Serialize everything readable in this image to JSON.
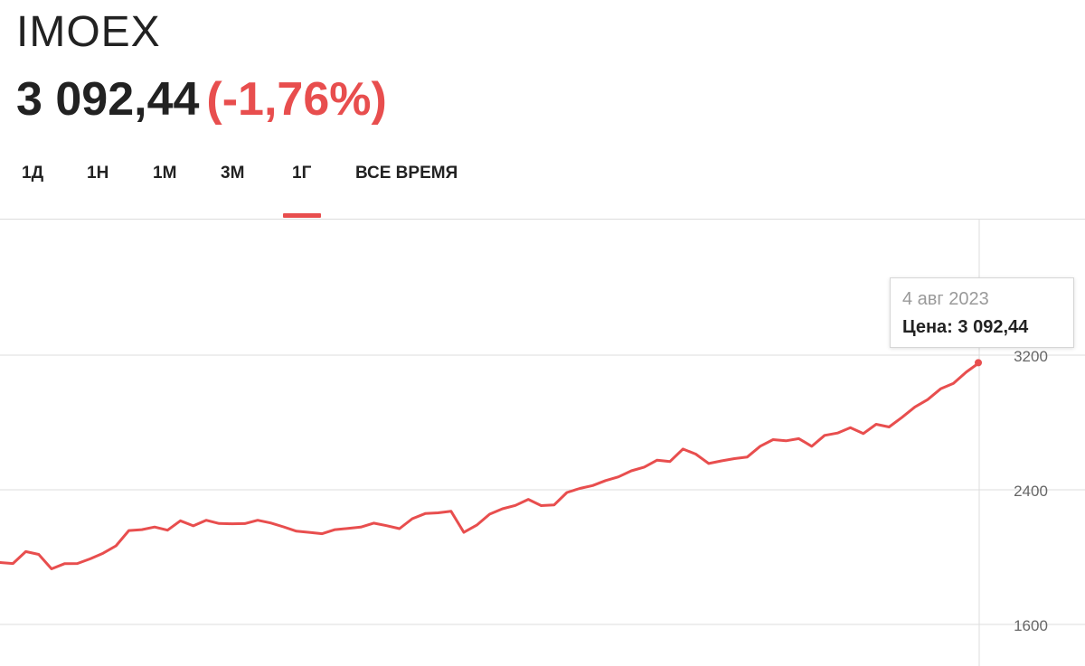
{
  "header": {
    "ticker": "IMOEX",
    "price": "3 092,44",
    "change": "(-1,76%)"
  },
  "tabs": [
    {
      "label": "1Д",
      "active": false
    },
    {
      "label": "1Н",
      "active": false
    },
    {
      "label": "1М",
      "active": false
    },
    {
      "label": "3М",
      "active": false
    },
    {
      "label": "1Г",
      "active": true
    },
    {
      "label": "ВСЕ ВРЕМЯ",
      "active": false
    }
  ],
  "tooltip": {
    "date": "4 авг 2023",
    "price": "Цена: 3 092,44"
  },
  "colors": {
    "accent": "#e84e4e",
    "text": "#222222",
    "grid": "#dddddd",
    "axis_text": "#666666"
  },
  "chart_data": {
    "type": "line",
    "ylim": [
      1600,
      3800
    ],
    "yticks": [
      1600,
      2400,
      3200
    ],
    "ytick_labels": [
      "1600",
      "2400",
      "3200"
    ],
    "grid": true,
    "series": [
      {
        "values": [
          1968,
          1962,
          2033,
          2016,
          1930,
          1961,
          1962,
          1990,
          2023,
          2067,
          2158,
          2163,
          2179,
          2160,
          2216,
          2186,
          2219,
          2200,
          2198,
          2199,
          2219,
          2203,
          2180,
          2154,
          2147,
          2139,
          2163,
          2170,
          2178,
          2202,
          2187,
          2169,
          2228,
          2259,
          2263,
          2273,
          2147,
          2190,
          2255,
          2287,
          2307,
          2343,
          2306,
          2310,
          2384,
          2408,
          2425,
          2455,
          2477,
          2513,
          2535,
          2576,
          2568,
          2642,
          2612,
          2556,
          2572,
          2585,
          2595,
          2659,
          2698,
          2691,
          2704,
          2658,
          2723,
          2737,
          2769,
          2734,
          2789,
          2773,
          2830,
          2892,
          2936,
          3000,
          3032,
          3100,
          3155
        ]
      }
    ]
  }
}
